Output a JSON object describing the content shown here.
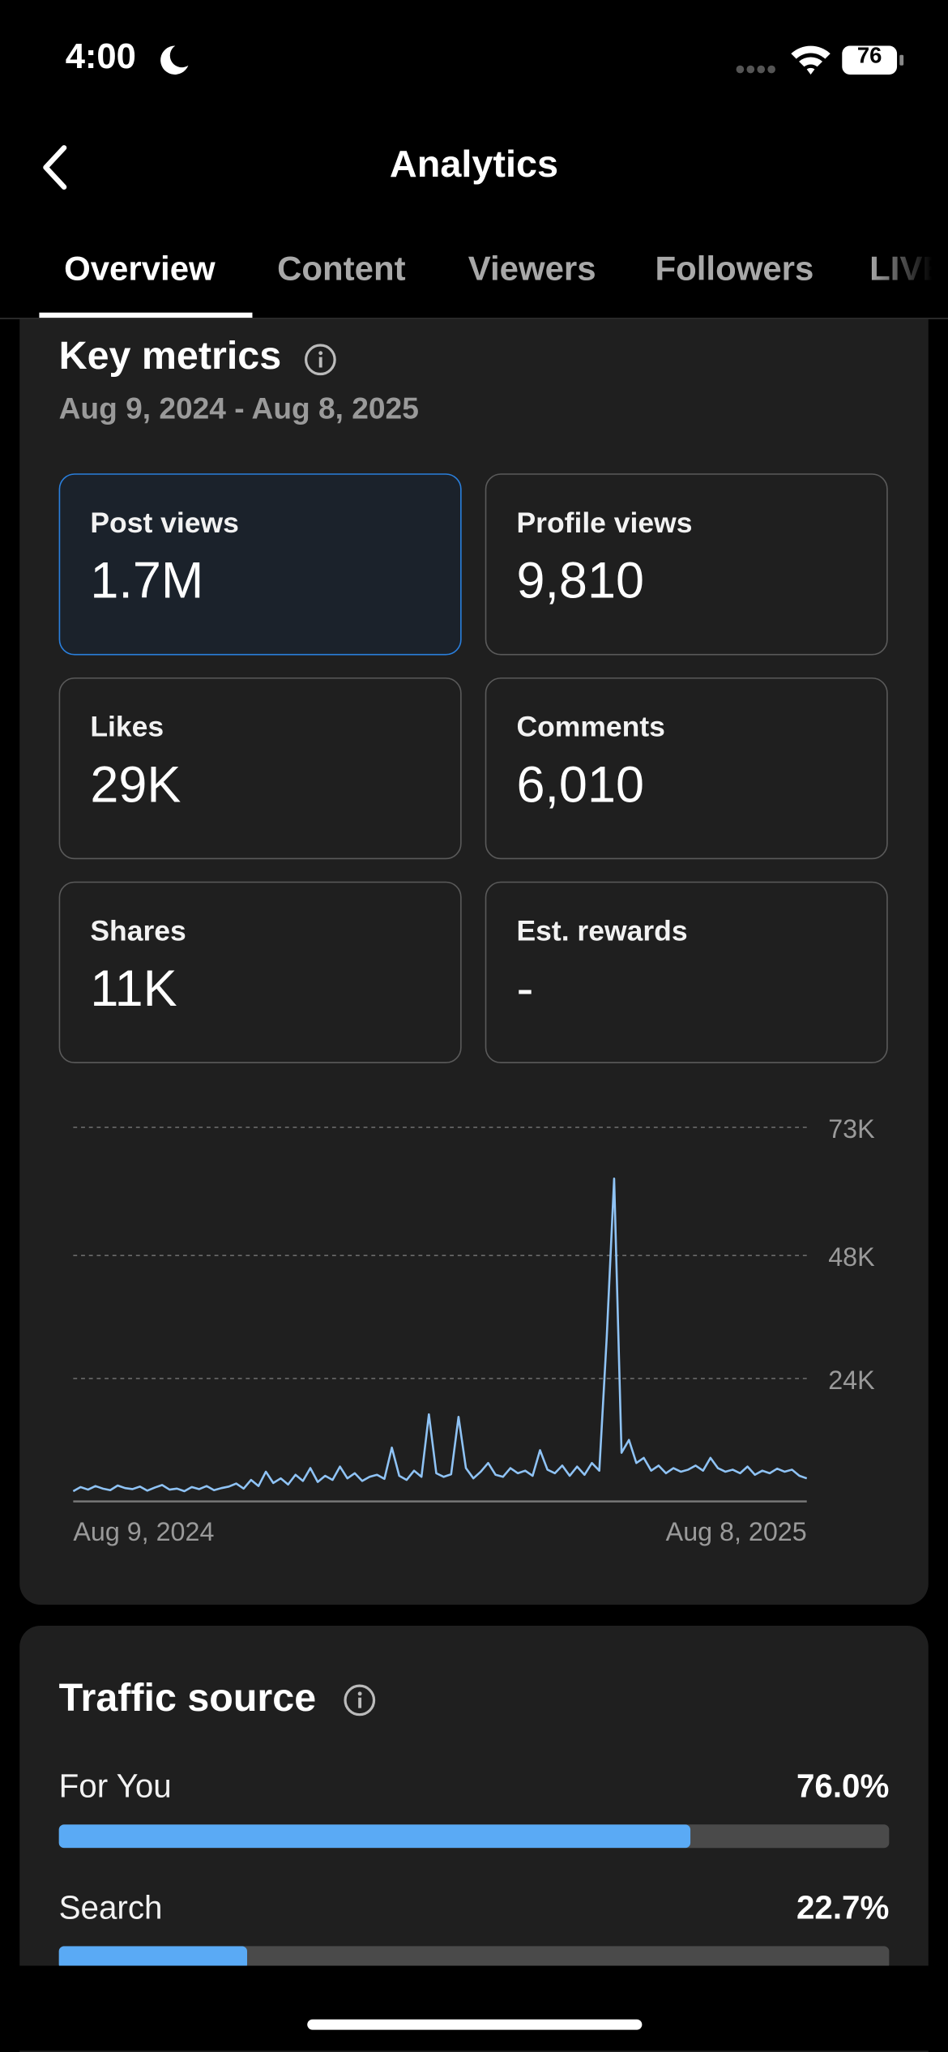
{
  "status": {
    "time": "4:00",
    "battery": "76"
  },
  "header": {
    "title": "Analytics"
  },
  "tabs": [
    "Overview",
    "Content",
    "Viewers",
    "Followers",
    "LIVE"
  ],
  "key_metrics": {
    "title": "Key metrics",
    "date_range": "Aug 9, 2024 - Aug 8, 2025",
    "cards": [
      {
        "label": "Post views",
        "value": "1.7M"
      },
      {
        "label": "Profile views",
        "value": "9,810"
      },
      {
        "label": "Likes",
        "value": "29K"
      },
      {
        "label": "Comments",
        "value": "6,010"
      },
      {
        "label": "Shares",
        "value": "11K"
      },
      {
        "label": "Est. rewards",
        "value": "-"
      }
    ]
  },
  "chart_data": {
    "type": "line",
    "color": "#8fc3f5",
    "grid": true,
    "categories": [
      "Aug 9, 2024",
      null,
      null,
      null,
      null,
      null,
      null,
      null,
      null,
      null,
      null,
      null,
      null,
      null,
      null,
      null,
      null,
      null,
      null,
      null,
      null,
      null,
      null,
      null,
      null,
      null,
      null,
      null,
      null,
      null,
      null,
      null,
      null,
      null,
      null,
      null,
      null,
      null,
      null,
      null,
      null,
      null,
      null,
      null,
      null,
      null,
      null,
      null,
      null,
      null,
      null,
      null,
      null,
      null,
      null,
      null,
      null,
      null,
      null,
      null,
      null,
      null,
      null,
      null,
      null,
      null,
      null,
      null,
      null,
      null,
      null,
      null,
      null,
      null,
      null,
      null,
      null,
      null,
      null,
      null,
      null,
      null,
      null,
      null,
      null,
      null,
      null,
      null,
      null,
      null,
      null,
      null,
      null,
      null,
      null,
      null,
      null,
      null,
      null,
      "Aug 8, 2025"
    ],
    "values": [
      2000,
      2800,
      2300,
      3000,
      2500,
      2200,
      3100,
      2600,
      2400,
      2900,
      2100,
      2700,
      3200,
      2300,
      2500,
      2000,
      2800,
      2400,
      3000,
      2200,
      2600,
      2900,
      3500,
      2500,
      4200,
      3000,
      5800,
      3600,
      4500,
      3300,
      5200,
      4000,
      6500,
      3800,
      5000,
      4200,
      6800,
      4500,
      5500,
      4000,
      4800,
      5200,
      4400,
      10500,
      5000,
      4200,
      6000,
      4800,
      17000,
      5500,
      4800,
      5300,
      16500,
      6500,
      4500,
      5800,
      7500,
      5200,
      4800,
      6500,
      5500,
      6000,
      5000,
      10000,
      6200,
      5500,
      7000,
      5000,
      6800,
      5200,
      7500,
      6000,
      32000,
      63000,
      9500,
      12000,
      7500,
      8500,
      6000,
      7000,
      5500,
      6500,
      5800,
      6200,
      7000,
      6000,
      8500,
      6500,
      5800,
      6200,
      5500,
      6800,
      5200,
      6000,
      5500,
      6400,
      5800,
      6200,
      5000,
      4500
    ],
    "ylim": [
      0,
      73000
    ],
    "yticks": [
      {
        "value": 24000,
        "label": "24K"
      },
      {
        "value": 48000,
        "label": "48K"
      },
      {
        "value": 73000,
        "label": "73K"
      }
    ]
  },
  "traffic": {
    "title": "Traffic source",
    "sources": [
      {
        "name": "For You",
        "value": 76.0,
        "value_label": "76.0%"
      },
      {
        "name": "Search",
        "value": 22.7,
        "value_label": "22.7%"
      }
    ]
  }
}
